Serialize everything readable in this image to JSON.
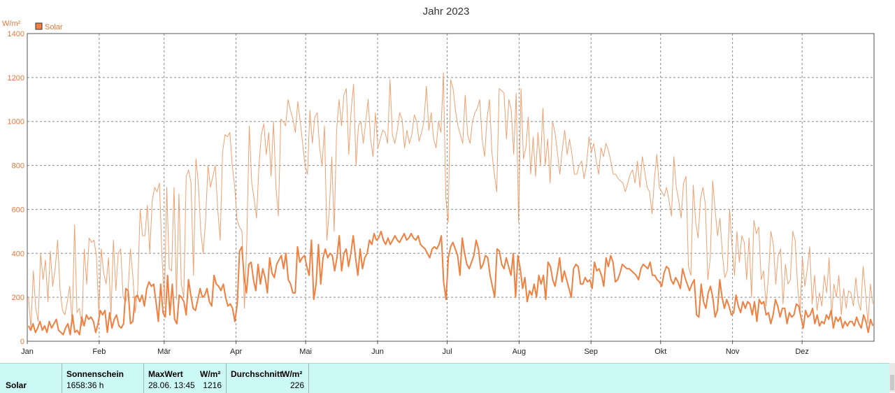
{
  "chart_data": {
    "type": "line",
    "title": "Jahr 2023",
    "ylabel": "W/m²",
    "ylim": [
      0,
      1400
    ],
    "yticks": [
      0,
      200,
      400,
      600,
      800,
      1000,
      1200,
      1400
    ],
    "xlim": [
      0,
      365
    ],
    "months": [
      "Jan",
      "Feb",
      "Mär",
      "Apr",
      "Mai",
      "Jun",
      "Jul",
      "Aug",
      "Sep",
      "Okt",
      "Nov",
      "Dez"
    ],
    "month_starts": [
      0,
      31,
      59,
      90,
      120,
      151,
      181,
      212,
      243,
      273,
      304,
      334
    ],
    "grid": true,
    "legend": "top-left",
    "series": [
      {
        "name": "Solar",
        "role": "daily-maximum",
        "color": "#f0a070",
        "values": [
          200,
          60,
          320,
          150,
          90,
          400,
          280,
          370,
          180,
          410,
          250,
          330,
          460,
          240,
          140,
          120,
          180,
          250,
          80,
          530,
          130,
          150,
          70,
          420,
          260,
          470,
          450,
          460,
          390,
          120,
          420,
          310,
          260,
          380,
          120,
          460,
          230,
          400,
          420,
          200,
          180,
          220,
          420,
          300,
          130,
          230,
          600,
          480,
          480,
          620,
          400,
          640,
          700,
          680,
          720,
          390,
          170,
          700,
          330,
          320,
          700,
          190,
          670,
          260,
          200,
          750,
          780,
          720,
          300,
          830,
          720,
          500,
          400,
          550,
          800,
          700,
          750,
          800,
          600,
          460,
          860,
          940,
          930,
          950,
          800,
          700,
          550,
          520,
          500,
          150,
          460,
          980,
          720,
          650,
          560,
          800,
          940,
          990,
          850,
          950,
          750,
          1000,
          700,
          570,
          1010,
          1000,
          980,
          1100,
          1050,
          1010,
          950,
          1090,
          1000,
          900,
          800,
          760,
          1050,
          900,
          1020,
          1040,
          880,
          800,
          980,
          460,
          600,
          840,
          500,
          960,
          1100,
          980,
          1120,
          1150,
          850,
          1050,
          1170,
          800,
          980,
          1000,
          900,
          1000,
          1100,
          920,
          840,
          1040,
          880,
          920,
          960,
          950,
          900,
          1190,
          940,
          900,
          960,
          1040,
          1010,
          880,
          960,
          900,
          940,
          1030,
          1000,
          910,
          950,
          1000,
          1160,
          960,
          1040,
          920,
          880,
          1000,
          950,
          1220,
          650,
          540,
          1190,
          1150,
          1050,
          980,
          940,
          900,
          1120,
          940,
          900,
          1000,
          1040,
          1060,
          1100,
          920,
          840,
          1010,
          1100,
          860,
          760,
          680,
          1150,
          1140,
          1130,
          920,
          1100,
          1050,
          850,
          1130,
          540,
          1150,
          830,
          880,
          1020,
          760,
          930,
          750,
          950,
          800,
          1060,
          800,
          920,
          720,
          1000,
          950,
          860,
          760,
          870,
          960,
          850,
          920,
          850,
          760,
          760,
          800,
          820,
          740,
          800,
          930,
          860,
          900,
          820,
          760,
          880,
          840,
          900,
          870,
          820,
          760,
          760,
          740,
          730,
          720,
          680,
          720,
          760,
          780,
          720,
          820,
          700,
          840,
          770,
          700,
          680,
          580,
          740,
          850,
          700,
          680,
          660,
          700,
          640,
          570,
          840,
          700,
          640,
          560,
          720,
          750,
          340,
          300,
          710,
          540,
          470,
          650,
          700,
          620,
          280,
          380,
          730,
          600,
          480,
          560,
          400,
          290,
          320,
          600,
          430,
          300,
          500,
          360,
          480,
          450,
          280,
          470,
          200,
          550,
          490,
          520,
          280,
          320,
          160,
          300,
          500,
          440,
          260,
          390,
          420,
          170,
          350,
          260,
          280,
          500,
          460,
          250,
          130,
          380,
          250,
          330,
          430,
          170,
          300,
          140,
          220,
          160,
          300,
          220,
          380,
          110,
          260,
          200,
          300,
          120,
          240,
          150,
          230,
          220,
          160,
          290,
          180,
          140,
          340,
          220,
          80,
          260,
          170
        ]
      },
      {
        "name": "Solar",
        "role": "daily-average",
        "color": "#f08040",
        "values": [
          70,
          50,
          80,
          40,
          60,
          90,
          50,
          70,
          40,
          90,
          60,
          80,
          100,
          50,
          40,
          30,
          60,
          80,
          30,
          120,
          40,
          50,
          30,
          110,
          70,
          120,
          100,
          110,
          90,
          40,
          80,
          140,
          120,
          140,
          40,
          130,
          60,
          100,
          120,
          70,
          60,
          80,
          240,
          230,
          80,
          90,
          200,
          210,
          180,
          210,
          160,
          240,
          270,
          250,
          260,
          180,
          90,
          260,
          130,
          110,
          300,
          120,
          260,
          100,
          80,
          210,
          200,
          180,
          120,
          280,
          210,
          150,
          140,
          190,
          240,
          200,
          210,
          240,
          180,
          160,
          300,
          260,
          250,
          230,
          260,
          200,
          160,
          170,
          150,
          90,
          170,
          410,
          430,
          290,
          220,
          350,
          360,
          280,
          230,
          350,
          260,
          330,
          290,
          220,
          380,
          310,
          290,
          350,
          370,
          390,
          330,
          400,
          280,
          260,
          220,
          220,
          430,
          360,
          380,
          390,
          340,
          300,
          460,
          190,
          260,
          440,
          260,
          380,
          420,
          380,
          400,
          390,
          320,
          380,
          480,
          320,
          400,
          420,
          340,
          400,
          480,
          380,
          300,
          420,
          330,
          380,
          400,
          460,
          440,
          490,
          460,
          470,
          500,
          460,
          440,
          470,
          440,
          460,
          480,
          460,
          450,
          470,
          490,
          460,
          470,
          490,
          470,
          460,
          480,
          440,
          430,
          420,
          400,
          380,
          420,
          430,
          420,
          440,
          480,
          270,
          190,
          380,
          430,
          450,
          420,
          390,
          300,
          470,
          400,
          350,
          330,
          360,
          390,
          460,
          420,
          330,
          350,
          390,
          380,
          300,
          250,
          200,
          420,
          410,
          350,
          330,
          380,
          340,
          300,
          400,
          200,
          390,
          330,
          240,
          290,
          180,
          230,
          210,
          260,
          200,
          300,
          260,
          300,
          190,
          360,
          340,
          280,
          250,
          310,
          380,
          270,
          320,
          280,
          240,
          200,
          330,
          350,
          340,
          260,
          260,
          290,
          270,
          280,
          240,
          360,
          320,
          330,
          300,
          250,
          380,
          340,
          390,
          360,
          270,
          280,
          310,
          350,
          340,
          330,
          330,
          320,
          310,
          300,
          280,
          330,
          350,
          340,
          330,
          360,
          300,
          300,
          280,
          270,
          250,
          310,
          340,
          330,
          280,
          260,
          290,
          270,
          240,
          330,
          290,
          260,
          230,
          260,
          280,
          120,
          110,
          260,
          180,
          150,
          220,
          250,
          200,
          110,
          140,
          280,
          200,
          150,
          190,
          160,
          120,
          130,
          210,
          160,
          130,
          180,
          150,
          180,
          170,
          120,
          180,
          90,
          190,
          170,
          180,
          120,
          130,
          80,
          120,
          190,
          160,
          110,
          150,
          150,
          80,
          130,
          110,
          120,
          170,
          160,
          110,
          60,
          140,
          110,
          120,
          150,
          80,
          120,
          70,
          90,
          80,
          120,
          100,
          140,
          60,
          110,
          90,
          110,
          60,
          90,
          70,
          90,
          90,
          70,
          110,
          80,
          60,
          120,
          90,
          40,
          100,
          70
        ]
      }
    ]
  },
  "stats": {
    "series_label": "Solar",
    "sunshine": {
      "header": "Sonnenschein",
      "value": "1658:36 h"
    },
    "max": {
      "header": "MaxWert",
      "unit": "W/m²",
      "date_time": "28.06.  13:45",
      "value": "1216"
    },
    "avg": {
      "header": "Durchschnitt",
      "unit": "W/m²",
      "value": "226"
    }
  }
}
